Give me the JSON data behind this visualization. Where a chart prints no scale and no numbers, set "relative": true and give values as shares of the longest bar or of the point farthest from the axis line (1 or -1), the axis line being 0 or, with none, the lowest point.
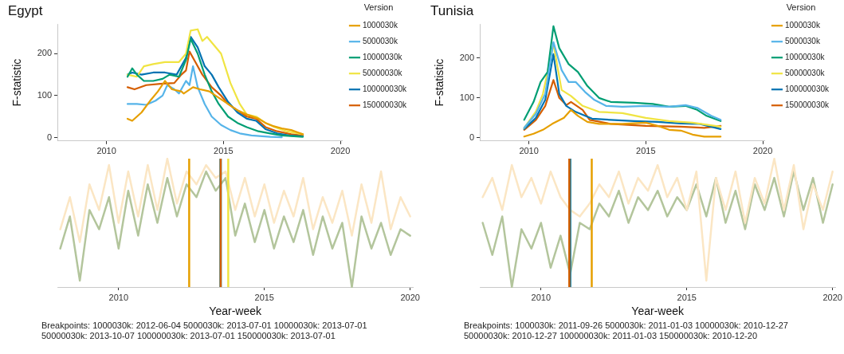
{
  "chart_data": [
    {
      "type": "line",
      "title": "Egypt",
      "ylabel": "F-statistic",
      "legend_title": "Version",
      "legend": "top right",
      "grid": false,
      "xlim": [
        2007.9,
        2020.1
      ],
      "xticks": [
        2010,
        2015,
        2020
      ],
      "ylim": [
        -8,
        270
      ],
      "yticks": [
        0,
        100,
        200
      ],
      "series": [
        {
          "name": "1000030k",
          "color": "#e69f00",
          "x": [
            2010.9,
            2011.1,
            2011.5,
            2011.9,
            2012.2,
            2012.5,
            2012.8,
            2013.2,
            2013.3,
            2013.7,
            2014,
            2014.4,
            2014.8,
            2015.2,
            2015.6,
            2016,
            2016.5,
            2016.8,
            2017.1,
            2017.5,
            2017.9,
            2018.2,
            2018.4
          ],
          "values": [
            45,
            40,
            60,
            90,
            110,
            135,
            115,
            110,
            105,
            120,
            115,
            110,
            95,
            80,
            65,
            55,
            45,
            35,
            28,
            22,
            18,
            12,
            8
          ]
        },
        {
          "name": "5000030k",
          "color": "#56b4e9",
          "x": [
            2010.9,
            2011.3,
            2011.7,
            2012.1,
            2012.4,
            2012.6,
            2012.9,
            2013.1,
            2013.4,
            2013.55,
            2013.7,
            2013.9,
            2014.2,
            2014.5,
            2014.9,
            2015.3,
            2015.7,
            2016.2,
            2017,
            2017.5
          ],
          "values": [
            80,
            80,
            78,
            88,
            100,
            125,
            115,
            105,
            135,
            125,
            170,
            120,
            80,
            50,
            30,
            18,
            10,
            5,
            2,
            1
          ]
        },
        {
          "name": "10000030k",
          "color": "#009e73",
          "x": [
            2010.9,
            2011.1,
            2011.3,
            2011.6,
            2012,
            2012.4,
            2012.7,
            2013.1,
            2013.4,
            2013.6,
            2013.9,
            2014.2,
            2014.5,
            2014.8,
            2015.2,
            2015.6,
            2016,
            2016.5,
            2017,
            2017.5,
            2018.4
          ],
          "values": [
            145,
            165,
            150,
            135,
            135,
            140,
            150,
            145,
            185,
            235,
            200,
            150,
            110,
            80,
            50,
            35,
            25,
            15,
            10,
            5,
            2
          ]
        },
        {
          "name": "50000030k",
          "color": "#f0e442",
          "x": [
            2010.9,
            2011.3,
            2011.6,
            2012,
            2012.5,
            2013.1,
            2013.4,
            2013.6,
            2013.9,
            2014.1,
            2014.3,
            2014.6,
            2014.9,
            2015.3,
            2015.7,
            2016,
            2016.4,
            2016.8,
            2017.2,
            2017.7,
            2018.4
          ],
          "values": [
            150,
            145,
            170,
            175,
            180,
            180,
            200,
            255,
            258,
            230,
            240,
            220,
            200,
            130,
            80,
            55,
            50,
            35,
            25,
            15,
            8
          ]
        },
        {
          "name": "100000030k",
          "color": "#0072b2",
          "x": [
            2010.9,
            2011.1,
            2011.5,
            2012,
            2012.5,
            2013,
            2013.4,
            2013.6,
            2013.9,
            2014.2,
            2014.5,
            2014.8,
            2015.2,
            2015.6,
            2016,
            2016.4,
            2016.8,
            2017.3,
            2017.8,
            2018.4
          ],
          "values": [
            150,
            155,
            150,
            155,
            155,
            150,
            190,
            240,
            215,
            170,
            150,
            120,
            85,
            60,
            45,
            40,
            20,
            10,
            5,
            3
          ]
        },
        {
          "name": "150000030k",
          "color": "#d55e00",
          "x": [
            2010.9,
            2011.2,
            2011.7,
            2012.3,
            2012.9,
            2013.2,
            2013.4,
            2013.55,
            2013.8,
            2014.1,
            2014.5,
            2014.9,
            2015.2,
            2015.6,
            2016,
            2016.4,
            2016.8,
            2017.3,
            2017.9,
            2018.4
          ],
          "values": [
            120,
            115,
            125,
            128,
            130,
            150,
            160,
            205,
            180,
            150,
            120,
            100,
            80,
            65,
            50,
            45,
            25,
            15,
            8,
            5
          ]
        }
      ]
    },
    {
      "type": "line",
      "title": "Tunisia",
      "ylabel": "F-statistic",
      "legend_title": "Version",
      "legend": "top right",
      "grid": false,
      "xlim": [
        2007.9,
        2020.1
      ],
      "xticks": [
        2010,
        2015,
        2020
      ],
      "ylim": [
        -8,
        285
      ],
      "yticks": [
        0,
        100,
        200
      ],
      "series": [
        {
          "name": "1000030k",
          "color": "#e69f00",
          "x": [
            2009.8,
            2010.2,
            2010.6,
            2011,
            2011.5,
            2011.8,
            2012.1,
            2012.5,
            2013,
            2014,
            2015,
            2015.5,
            2016,
            2016.5,
            2017,
            2017.5,
            2018.2
          ],
          "values": [
            3,
            10,
            20,
            35,
            50,
            70,
            55,
            40,
            35,
            35,
            38,
            30,
            20,
            18,
            8,
            3,
            3
          ]
        },
        {
          "name": "5000030k",
          "color": "#56b4e9",
          "x": [
            2009.8,
            2010.3,
            2010.7,
            2011.05,
            2011.4,
            2011.7,
            2012,
            2012.4,
            2012.8,
            2013.3,
            2014,
            2015,
            2016,
            2016.7,
            2017.2,
            2017.8,
            2018.2
          ],
          "values": [
            25,
            60,
            110,
            240,
            170,
            140,
            140,
            115,
            95,
            80,
            78,
            80,
            78,
            82,
            75,
            55,
            45
          ]
        },
        {
          "name": "10000030k",
          "color": "#009e73",
          "x": [
            2009.8,
            2010.2,
            2010.5,
            2010.8,
            2011.05,
            2011.3,
            2011.7,
            2012.1,
            2012.5,
            2013,
            2013.5,
            2014.5,
            2015.3,
            2016,
            2016.7,
            2017.2,
            2017.6,
            2018.2
          ],
          "values": [
            45,
            90,
            140,
            165,
            280,
            225,
            185,
            165,
            130,
            100,
            90,
            88,
            85,
            78,
            80,
            70,
            55,
            42
          ]
        },
        {
          "name": "50000030k",
          "color": "#f0e442",
          "x": [
            2009.8,
            2010.3,
            2010.6,
            2011.05,
            2011.4,
            2011.8,
            2012.3,
            2013,
            2014,
            2015,
            2016,
            2017,
            2018.2
          ],
          "values": [
            25,
            66,
            110,
            235,
            120,
            105,
            80,
            65,
            62,
            50,
            42,
            38,
            28
          ]
        },
        {
          "name": "100000030k",
          "color": "#0072b2",
          "x": [
            2009.8,
            2010.3,
            2010.7,
            2011.05,
            2011.3,
            2011.6,
            2012,
            2012.7,
            2013.5,
            2014.5,
            2015.5,
            2016.5,
            2017.3,
            2018.2
          ],
          "values": [
            22,
            50,
            95,
            210,
            110,
            80,
            65,
            48,
            45,
            42,
            40,
            36,
            35,
            22
          ]
        },
        {
          "name": "150000030k",
          "color": "#d55e00",
          "x": [
            2009.8,
            2010.3,
            2010.7,
            2011.05,
            2011.3,
            2011.6,
            2011.8,
            2012.3,
            2012.6,
            2013.5,
            2015,
            2016.5,
            2017.5,
            2018.2
          ],
          "values": [
            20,
            45,
            80,
            145,
            100,
            82,
            90,
            70,
            45,
            35,
            30,
            28,
            25,
            30
          ]
        }
      ]
    },
    {
      "type": "line",
      "xlabel": "Year-week",
      "relative": true,
      "grid": false,
      "tick_labels": "x",
      "xlim": [
        2007.9,
        2020.1
      ],
      "xticks": [
        2010,
        2015,
        2020
      ],
      "x": [
        2008,
        2008.33,
        2008.67,
        2009,
        2009.33,
        2009.67,
        2010,
        2010.33,
        2010.67,
        2011,
        2011.33,
        2011.67,
        2012,
        2012.33,
        2012.67,
        2013,
        2013.33,
        2013.67,
        2014,
        2014.33,
        2014.67,
        2015,
        2015.33,
        2015.67,
        2016,
        2016.33,
        2016.67,
        2017,
        2017.33,
        2017.67,
        2018,
        2018.33,
        2018.67,
        2019,
        2019.33,
        2019.67,
        2020
      ],
      "series": [
        {
          "color": "#fbe6c4",
          "values": [
            0.45,
            0.7,
            0.35,
            0.8,
            0.6,
            0.95,
            0.5,
            0.9,
            0.55,
            0.95,
            0.6,
            1.0,
            0.65,
            0.9,
            0.8,
            0.95,
            0.85,
            0.9,
            0.6,
            0.85,
            0.55,
            0.8,
            0.5,
            0.75,
            0.55,
            0.85,
            0.45,
            0.7,
            0.5,
            0.75,
            0.4,
            0.8,
            0.5,
            0.9,
            0.45,
            0.7,
            0.55
          ]
        },
        {
          "color": "#b3c59c",
          "values": [
            0.3,
            0.55,
            0.05,
            0.6,
            0.45,
            0.7,
            0.3,
            0.75,
            0.4,
            0.8,
            0.5,
            0.85,
            0.55,
            0.8,
            0.7,
            0.9,
            0.75,
            0.85,
            0.4,
            0.65,
            0.35,
            0.6,
            0.3,
            0.55,
            0.35,
            0.6,
            0.25,
            0.55,
            0.3,
            0.5,
            0.0,
            0.55,
            0.3,
            0.5,
            0.25,
            0.45,
            0.4
          ]
        }
      ],
      "ref_lines": [
        {
          "axis": "x",
          "value": 2012.42,
          "color": "#e69f00"
        },
        {
          "axis": "x",
          "value": 2013.5,
          "color": "#56b4e9"
        },
        {
          "axis": "x",
          "value": 2013.5,
          "color": "#009e73"
        },
        {
          "axis": "x",
          "value": 2013.76,
          "color": "#f0e442"
        },
        {
          "axis": "x",
          "value": 2013.5,
          "color": "#0072b2"
        },
        {
          "axis": "x",
          "value": 2013.5,
          "color": "#d55e00"
        }
      ],
      "annotations": [
        "Breakpoints: 1000030k: 2012-06-04 5000030k: 2013-07-01 10000030k: 2013-07-01 50000030k: 2013-10-07 100000030k: 2013-07-01 150000030k: 2013-07-01"
      ]
    },
    {
      "type": "line",
      "xlabel": "Year-week",
      "relative": true,
      "grid": false,
      "tick_labels": "x",
      "xlim": [
        2007.9,
        2020.1
      ],
      "xticks": [
        2010,
        2015,
        2020
      ],
      "x": [
        2008,
        2008.33,
        2008.67,
        2009,
        2009.33,
        2009.67,
        2010,
        2010.33,
        2010.67,
        2011,
        2011.33,
        2011.67,
        2012,
        2012.33,
        2012.67,
        2013,
        2013.33,
        2013.67,
        2014,
        2014.33,
        2014.67,
        2015,
        2015.33,
        2015.67,
        2016,
        2016.33,
        2016.67,
        2017,
        2017.33,
        2017.67,
        2018,
        2018.33,
        2018.67,
        2019,
        2019.33,
        2019.67,
        2020
      ],
      "series": [
        {
          "color": "#fbe6c4",
          "values": [
            0.7,
            0.85,
            0.6,
            0.95,
            0.7,
            0.85,
            0.65,
            0.9,
            0.7,
            0.6,
            0.55,
            0.65,
            0.8,
            0.7,
            0.9,
            0.65,
            0.85,
            0.75,
            0.95,
            0.7,
            0.85,
            0.6,
            0.9,
            0.05,
            0.85,
            0.6,
            0.9,
            0.5,
            0.85,
            0.65,
            1.0,
            0.6,
            0.95,
            0.45,
            0.8,
            0.6,
            0.9
          ]
        },
        {
          "color": "#b3c59c",
          "values": [
            0.5,
            0.25,
            0.55,
            0.0,
            0.45,
            0.3,
            0.5,
            0.15,
            0.4,
            0.1,
            0.5,
            0.45,
            0.65,
            0.55,
            0.75,
            0.5,
            0.7,
            0.6,
            0.75,
            0.55,
            0.7,
            0.6,
            0.8,
            0.55,
            0.85,
            0.5,
            0.75,
            0.45,
            0.8,
            0.6,
            0.85,
            0.55,
            0.9,
            0.6,
            0.85,
            0.5,
            0.8
          ]
        }
      ],
      "ref_lines": [
        {
          "axis": "x",
          "value": 2011.74,
          "color": "#e69f00"
        },
        {
          "axis": "x",
          "value": 2011.0,
          "color": "#56b4e9"
        },
        {
          "axis": "x",
          "value": 2010.99,
          "color": "#009e73"
        },
        {
          "axis": "x",
          "value": 2010.99,
          "color": "#f0e442"
        },
        {
          "axis": "x",
          "value": 2011.0,
          "color": "#0072b2"
        },
        {
          "axis": "x",
          "value": 2010.97,
          "color": "#d55e00"
        }
      ],
      "annotations": [
        "Breakpoints: 1000030k: 2011-09-26 5000030k: 2011-01-03 10000030k: 2010-12-27 50000030k: 2010-12-27 100000030k: 2011-01-03 150000030k: 2010-12-20"
      ]
    }
  ]
}
